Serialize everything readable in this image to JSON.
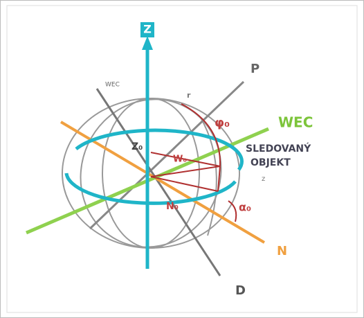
{
  "labels": {
    "z_axis": "Z",
    "p_axis": "P",
    "wec_axis": "WEC",
    "wec_small": "WEC",
    "object_line1": "SLEDOVANÝ",
    "object_line2": "OBJEKT",
    "n_axis": "N",
    "d_axis": "D",
    "r": "r",
    "phi0": "φ₀",
    "z0": "Z₀",
    "w0": "W₀",
    "n0": "N₀",
    "alpha0": "α₀",
    "z_small": "z"
  }
}
